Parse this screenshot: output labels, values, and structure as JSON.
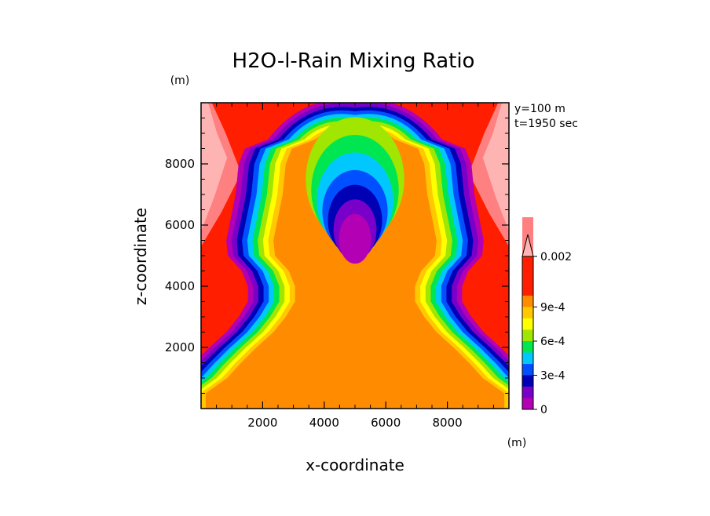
{
  "chart_data": {
    "type": "heatmap",
    "title": "H2O-l-Rain Mixing Ratio",
    "xlabel": "x-coordinate",
    "ylabel": "z-coordinate",
    "x_unit": "(m)",
    "y_unit": "(m)",
    "annotations": [
      "y=100 m",
      "t=1950 sec"
    ],
    "xlim": [
      0,
      10000
    ],
    "ylim": [
      0,
      10000
    ],
    "xticks": [
      {
        "value": 2000,
        "label": "2000"
      },
      {
        "value": 4000,
        "label": "4000"
      },
      {
        "value": 6000,
        "label": "6000"
      },
      {
        "value": 8000,
        "label": "8000"
      }
    ],
    "yticks": [
      {
        "value": 2000,
        "label": "2000"
      },
      {
        "value": 4000,
        "label": "4000"
      },
      {
        "value": 6000,
        "label": "6000"
      },
      {
        "value": 8000,
        "label": "8000"
      }
    ],
    "colorbar": {
      "levels": [
        {
          "value": 0,
          "color": "#b400b4"
        },
        {
          "value": 0.0001,
          "color": "#7800c8"
        },
        {
          "value": 0.0002,
          "color": "#0000b4"
        },
        {
          "value": 0.0003,
          "color": "#0050ff"
        },
        {
          "value": 0.0004,
          "color": "#00c8ff"
        },
        {
          "value": 0.0005,
          "color": "#00e650"
        },
        {
          "value": 0.0006,
          "color": "#a0e600"
        },
        {
          "value": 0.0007,
          "color": "#ffff00"
        },
        {
          "value": 0.0008,
          "color": "#ffc800"
        },
        {
          "value": 0.0009,
          "color": "#ff8c00"
        },
        {
          "value": 0.001,
          "color": "#ff1e00"
        },
        {
          "value": 0.002,
          "color": "#ff8080"
        },
        {
          "value": 0.003,
          "color": "#ffb4b4"
        }
      ],
      "labels": [
        {
          "value": 0,
          "label": "0"
        },
        {
          "value": 0.0003,
          "label": "3e-4"
        },
        {
          "value": 0.0006,
          "label": "6e-4"
        },
        {
          "value": 0.0009,
          "label": "9e-4"
        },
        {
          "value": 0.002,
          "label": "0.002"
        }
      ],
      "extend": "max"
    },
    "shape_profile": [
      {
        "z": 500,
        "half_width": 4850
      },
      {
        "z": 1000,
        "half_width": 4150
      },
      {
        "z": 1500,
        "half_width": 3700
      },
      {
        "z": 2000,
        "half_width": 3200
      },
      {
        "z": 2500,
        "half_width": 2650
      },
      {
        "z": 3000,
        "half_width": 2250
      },
      {
        "z": 3500,
        "half_width": 1950
      },
      {
        "z": 4000,
        "half_width": 1950
      },
      {
        "z": 4500,
        "half_width": 2150
      },
      {
        "z": 5000,
        "half_width": 2600
      },
      {
        "z": 5500,
        "half_width": 2650
      },
      {
        "z": 6000,
        "half_width": 2550
      },
      {
        "z": 7000,
        "half_width": 2350
      },
      {
        "z": 8000,
        "half_width": 2250
      },
      {
        "z": 8500,
        "half_width": 2050
      },
      {
        "z": 8800,
        "half_width": 1300
      }
    ]
  }
}
